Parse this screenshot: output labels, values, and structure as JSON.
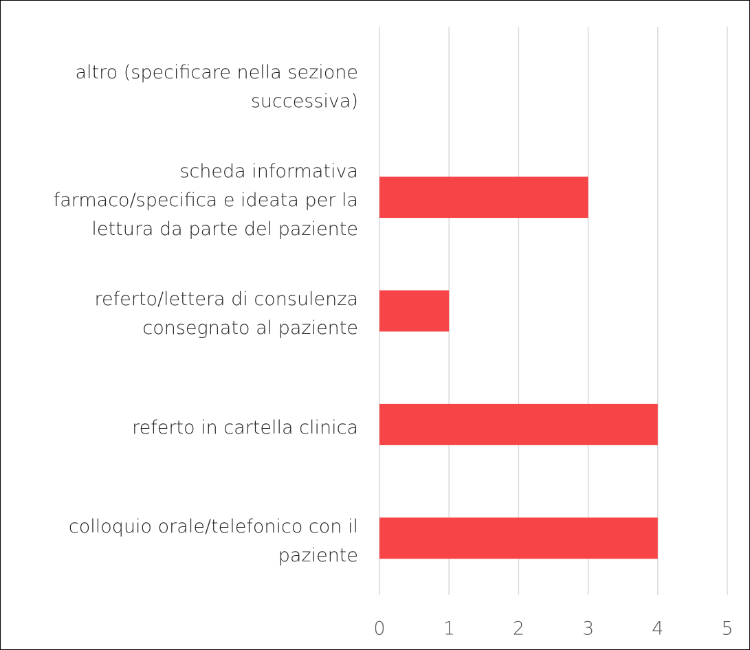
{
  "chart_data": {
    "type": "bar",
    "orientation": "horizontal",
    "categories": [
      "altro (specificare nella sezione successiva)",
      "scheda informativa farmaco/specifica e ideata per la lettura da parte del paziente",
      "referto/lettera di consulenza consegnato al paziente",
      "referto in cartella clinica",
      "colloquio orale/telefonico con il paziente"
    ],
    "values": [
      0,
      3,
      1,
      4,
      4
    ],
    "color": "#f74447",
    "xlim": [
      0,
      5
    ],
    "xticks": [
      0,
      1,
      2,
      3,
      4,
      5
    ],
    "grid": true
  }
}
